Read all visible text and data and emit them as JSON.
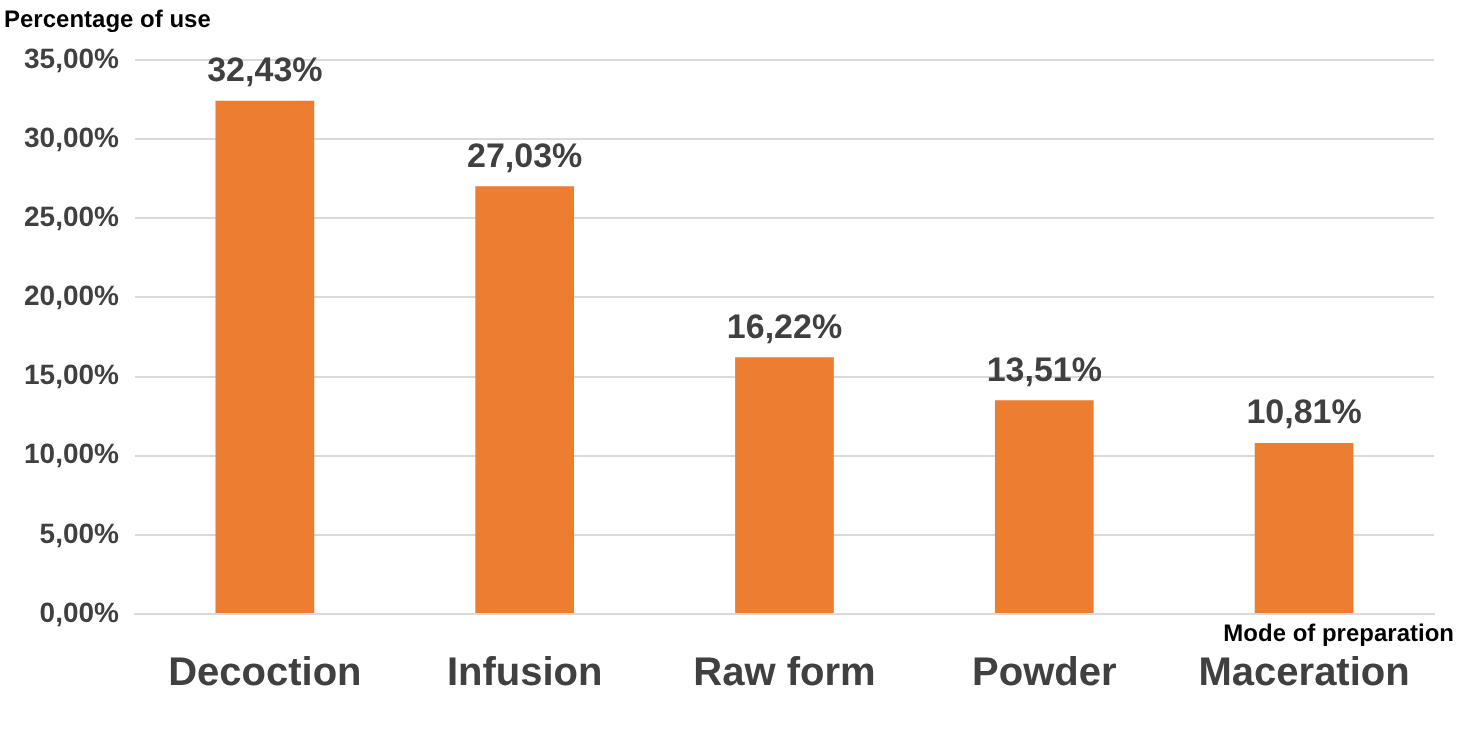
{
  "chart_data": {
    "type": "bar",
    "ylabel": "Percentage of use",
    "xlabel": "Mode of preparation",
    "categories": [
      "Decoction",
      "Infusion",
      "Raw form",
      "Powder",
      "Maceration"
    ],
    "values": [
      32.43,
      27.03,
      16.22,
      13.51,
      10.81
    ],
    "value_labels": [
      "32,43%",
      "27,03%",
      "16,22%",
      "13,51%",
      "10,81%"
    ],
    "color": "#ed7d31",
    "ylim": [
      0,
      35
    ],
    "yticks": [
      {
        "value": 0,
        "label": "0,00%"
      },
      {
        "value": 5,
        "label": "5,00%"
      },
      {
        "value": 10,
        "label": "10,00%"
      },
      {
        "value": 15,
        "label": "15,00%"
      },
      {
        "value": 20,
        "label": "20,00%"
      },
      {
        "value": 25,
        "label": "25,00%"
      },
      {
        "value": 30,
        "label": "30,00%"
      },
      {
        "value": 35,
        "label": "35,00%"
      }
    ],
    "grid": "y",
    "legend": false
  }
}
